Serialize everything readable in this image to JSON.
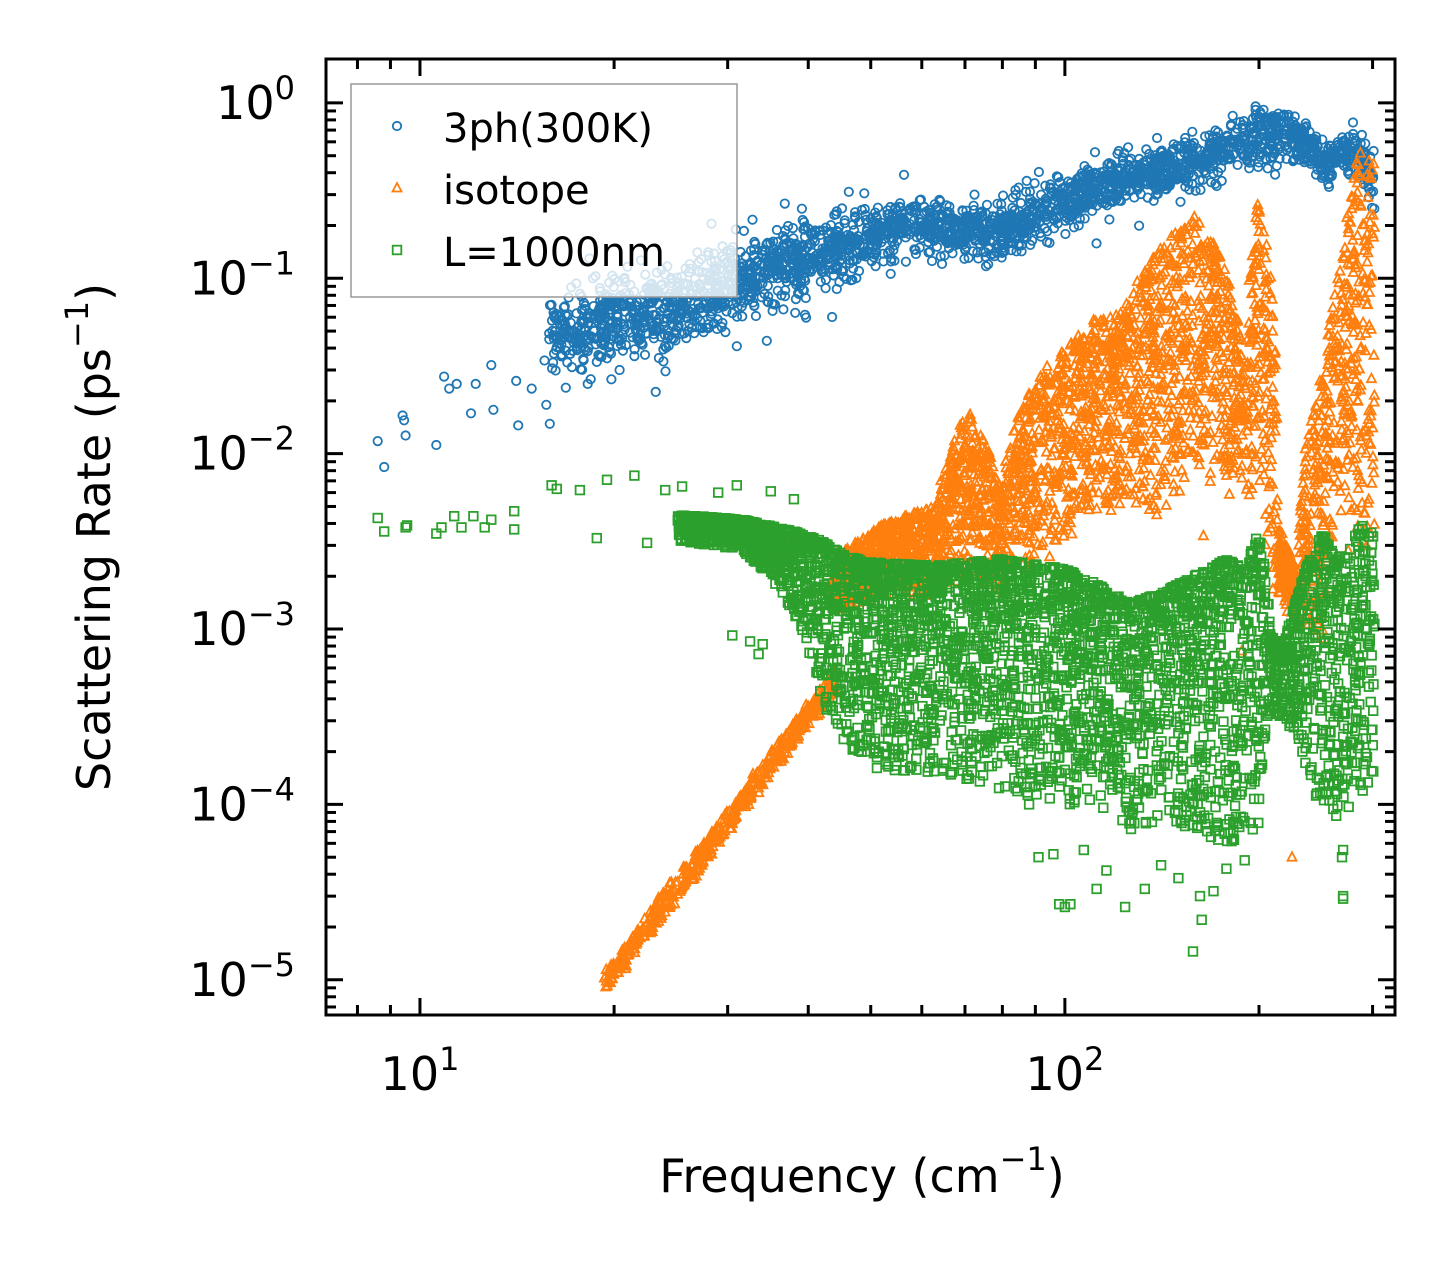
{
  "chart_data": {
    "type": "scatter",
    "title": "",
    "xlabel": "Frequency (cm",
    "xlabel_sup": "−1",
    "xlabel_end": ")",
    "ylabel": "Scattering Rate (ps",
    "ylabel_sup": "−1",
    "ylabel_end": ")",
    "xscale": "log",
    "yscale": "log",
    "xlim": [
      7.15,
      325
    ],
    "ylim": [
      6.3e-06,
      1.78
    ],
    "grid": false,
    "legend_position": "top-left",
    "x_ticks": [
      {
        "value": 10,
        "base": "10",
        "exp": "1"
      },
      {
        "value": 100,
        "base": "10",
        "exp": "2"
      }
    ],
    "y_ticks": [
      {
        "value": 1,
        "base": "10",
        "exp": "0"
      },
      {
        "value": 0.1,
        "base": "10",
        "exp": "−1"
      },
      {
        "value": 0.01,
        "base": "10",
        "exp": "−2"
      },
      {
        "value": 0.001,
        "base": "10",
        "exp": "−3"
      },
      {
        "value": 0.0001,
        "base": "10",
        "exp": "−4"
      },
      {
        "value": 1e-05,
        "base": "10",
        "exp": "−5"
      }
    ],
    "series": [
      {
        "name": "3ph(300K)",
        "marker": "circle",
        "color": "#1f77b4",
        "sparse_points": [
          [
            8.6,
            0.0118
          ],
          [
            8.8,
            0.0084
          ],
          [
            9.4,
            0.0165
          ],
          [
            9.45,
            0.0155
          ],
          [
            9.5,
            0.0127
          ],
          [
            10.6,
            0.0112
          ],
          [
            10.9,
            0.0275
          ],
          [
            11.1,
            0.0235
          ],
          [
            11.4,
            0.025
          ],
          [
            12.0,
            0.017
          ],
          [
            12.2,
            0.025
          ],
          [
            12.9,
            0.032
          ],
          [
            13.0,
            0.0178
          ],
          [
            14.1,
            0.026
          ],
          [
            14.2,
            0.0145
          ],
          [
            14.9,
            0.0235
          ],
          [
            15.7,
            0.019
          ],
          [
            15.9,
            0.0148
          ],
          [
            15.6,
            0.034
          ],
          [
            16.3,
            0.045
          ],
          [
            16.5,
            0.04
          ],
          [
            17.0,
            0.05
          ],
          [
            17.1,
            0.037
          ],
          [
            18.2,
            0.025
          ],
          [
            19.0,
            0.068
          ],
          [
            19.5,
            0.035
          ],
          [
            20.4,
            0.03
          ],
          [
            21.5,
            0.036
          ],
          [
            23.2,
            0.0225
          ],
          [
            22.0,
            0.045
          ],
          [
            24.5,
            0.06
          ],
          [
            26.0,
            0.05
          ],
          [
            28.5,
            0.055
          ],
          [
            31.0,
            0.041
          ],
          [
            34.5,
            0.044
          ],
          [
            33.0,
            0.07
          ]
        ],
        "band": {
          "x_range": [
            16,
            300
          ],
          "log_x": [
            1.2,
            1.4,
            1.6,
            1.75,
            1.9,
            2.0,
            2.1,
            2.2,
            2.3,
            2.35,
            2.4,
            2.45,
            2.48
          ],
          "center": [
            0.045,
            0.07,
            0.13,
            0.2,
            0.18,
            0.27,
            0.38,
            0.45,
            0.62,
            0.7,
            0.45,
            0.55,
            0.35
          ],
          "spread_dex": [
            0.2,
            0.22,
            0.2,
            0.14,
            0.13,
            0.14,
            0.13,
            0.14,
            0.14,
            0.12,
            0.1,
            0.12,
            0.15
          ],
          "count": 2600
        }
      },
      {
        "name": "isotope",
        "marker": "triangle",
        "color": "#ff7f0e",
        "line_segment": {
          "from": [
            19.3,
            1e-05
          ],
          "to": [
            44,
            0.00055
          ],
          "count": 500
        },
        "band": {
          "log_x": [
            1.64,
            1.72,
            1.8,
            1.85,
            1.9,
            1.95,
            2.0,
            2.05,
            2.1,
            2.15,
            2.2,
            2.25,
            2.28,
            2.3,
            2.33,
            2.36,
            2.4,
            2.43,
            2.46,
            2.48
          ],
          "top": [
            0.0025,
            0.004,
            0.005,
            0.018,
            0.006,
            0.025,
            0.04,
            0.06,
            0.08,
            0.15,
            0.23,
            0.11,
            0.03,
            0.28,
            0.004,
            0.002,
            0.03,
            0.13,
            0.6,
            0.6
          ],
          "bottom": [
            0.0012,
            0.0015,
            0.0015,
            0.0018,
            0.0015,
            0.002,
            0.003,
            0.004,
            0.005,
            0.004,
            0.007,
            0.006,
            0.005,
            0.002,
            0.0014,
            0.001,
            0.0008,
            0.0035,
            0.002,
            0.0015
          ],
          "count": 3200
        },
        "sparse_points": [
          [
            225,
            5e-05
          ],
          [
            275,
            0.0028
          ],
          [
            188,
            0.00075
          ],
          [
            164,
            0.0034
          ],
          [
            252,
            0.0086
          ]
        ]
      },
      {
        "name": "L=1000nm",
        "marker": "square",
        "color": "#2ca02c",
        "sparse_points": [
          [
            8.6,
            0.0043
          ],
          [
            8.8,
            0.0036
          ],
          [
            9.5,
            0.0038
          ],
          [
            9.55,
            0.0039
          ],
          [
            10.6,
            0.0035
          ],
          [
            10.8,
            0.0038
          ],
          [
            11.3,
            0.0044
          ],
          [
            11.6,
            0.0038
          ],
          [
            12.1,
            0.0044
          ],
          [
            12.6,
            0.0038
          ],
          [
            12.9,
            0.0042
          ],
          [
            14.0,
            0.0047
          ],
          [
            14.0,
            0.0037
          ],
          [
            16.0,
            0.0066
          ],
          [
            16.3,
            0.0063
          ],
          [
            17.7,
            0.0062
          ],
          [
            19.5,
            0.0071
          ],
          [
            21.5,
            0.0075
          ],
          [
            18.8,
            0.0033
          ],
          [
            22.5,
            0.0031
          ],
          [
            24.0,
            0.0062
          ],
          [
            25.5,
            0.0065
          ],
          [
            29.0,
            0.006
          ],
          [
            31.0,
            0.0066
          ],
          [
            35.0,
            0.0061
          ],
          [
            38.0,
            0.0055
          ],
          [
            30.5,
            0.00092
          ],
          [
            32.5,
            0.00085
          ],
          [
            34.0,
            0.00082
          ],
          [
            33.5,
            0.00072
          ],
          [
            88,
            0.0001
          ],
          [
            91,
            5e-05
          ],
          [
            96,
            5.2e-05
          ],
          [
            98,
            2.7e-05
          ],
          [
            100,
            2.6e-05
          ],
          [
            102,
            2.7e-05
          ],
          [
            107,
            5.5e-05
          ],
          [
            112,
            3.3e-05
          ],
          [
            116,
            4.2e-05
          ],
          [
            124,
            2.6e-05
          ],
          [
            133,
            3.3e-05
          ],
          [
            141,
            4.5e-05
          ],
          [
            150,
            3.8e-05
          ],
          [
            158,
            1.45e-05
          ],
          [
            163,
            2.2e-05
          ],
          [
            162,
            3e-05
          ],
          [
            170,
            3.2e-05
          ],
          [
            178,
            4.3e-05
          ],
          [
            190,
            4.8e-05
          ],
          [
            270,
            3e-05
          ],
          [
            270,
            2.9e-05
          ],
          [
            269,
            5e-05
          ],
          [
            270,
            5.5e-05
          ]
        ],
        "band": {
          "log_x": [
            1.4,
            1.5,
            1.58,
            1.62,
            1.66,
            1.7,
            1.8,
            1.9,
            2.0,
            2.05,
            2.1,
            2.15,
            2.2,
            2.25,
            2.28,
            2.3,
            2.32,
            2.34,
            2.36,
            2.38,
            2.4,
            2.42,
            2.44,
            2.46,
            2.48
          ],
          "top": [
            0.0045,
            0.0042,
            0.0036,
            0.0032,
            0.0026,
            0.0024,
            0.0023,
            0.0025,
            0.0022,
            0.0018,
            0.0014,
            0.0016,
            0.002,
            0.0025,
            0.0022,
            0.0035,
            0.0009,
            0.0008,
            0.0015,
            0.0025,
            0.0035,
            0.0025,
            0.0028,
            0.004,
            0.0035
          ],
          "bottom": [
            0.0032,
            0.0028,
            0.0012,
            0.0004,
            0.0002,
            0.00016,
            0.00015,
            0.00012,
            0.0001,
            0.0001,
            7e-05,
            8e-05,
            7e-05,
            6e-05,
            6e-05,
            7e-05,
            0.00035,
            0.0003,
            0.00025,
            0.00012,
            0.0001,
            8e-05,
            9e-05,
            0.00012,
            9e-05
          ],
          "count": 4200
        }
      }
    ]
  }
}
